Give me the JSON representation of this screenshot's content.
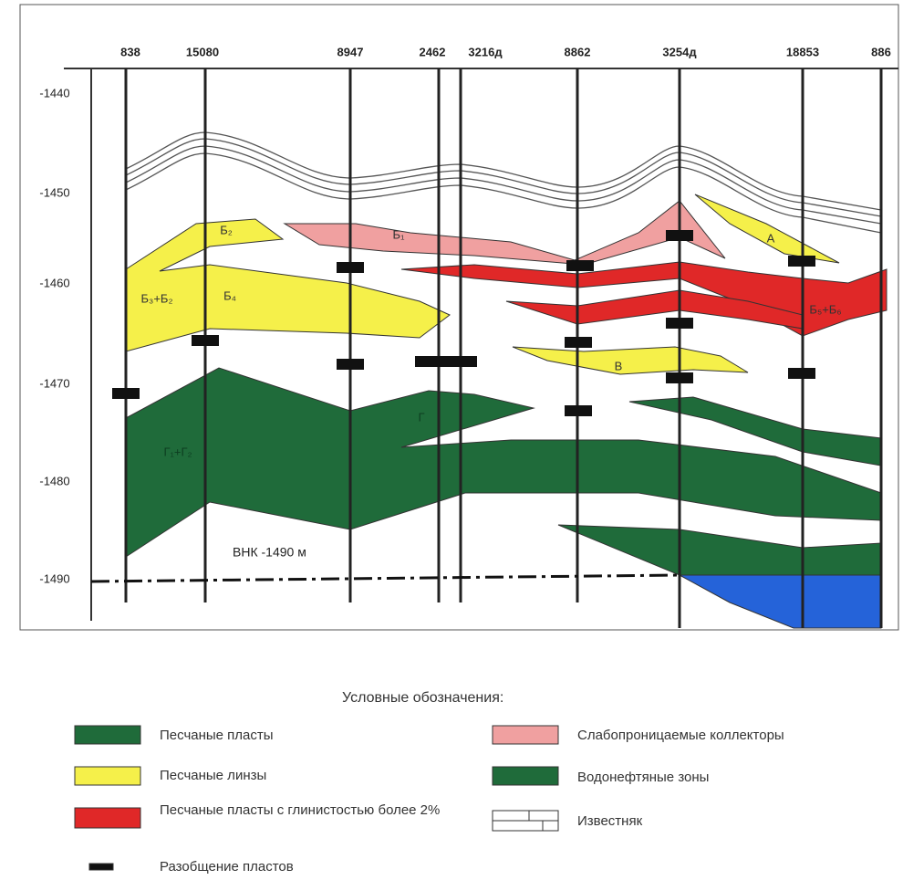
{
  "wells": [
    "838",
    "15080",
    "8947",
    "2462",
    "3216д",
    "8862",
    "3254д",
    "18853",
    "886"
  ],
  "depth_ticks": [
    "-1440",
    "-1450",
    "-1460",
    "-1470",
    "-1480",
    "-1490"
  ],
  "layer_labels": [
    "Б₂",
    "Б₁",
    "Б₃+Б₂",
    "Б₄",
    "А",
    "Б₅+Б₆",
    "В",
    "Г₁+Г₂",
    "Г"
  ],
  "owc_label": "ВНК -1490 м",
  "legend": {
    "title": "Условные обозначения:",
    "items": [
      "Песчаные пласты",
      "Песчаные линзы",
      "Песчаные пласты с глинистостью более 2%",
      "Разобщение пластов",
      "Слабопроницаемые коллекторы",
      "Водонефтяные зоны",
      "Известняк"
    ]
  }
}
